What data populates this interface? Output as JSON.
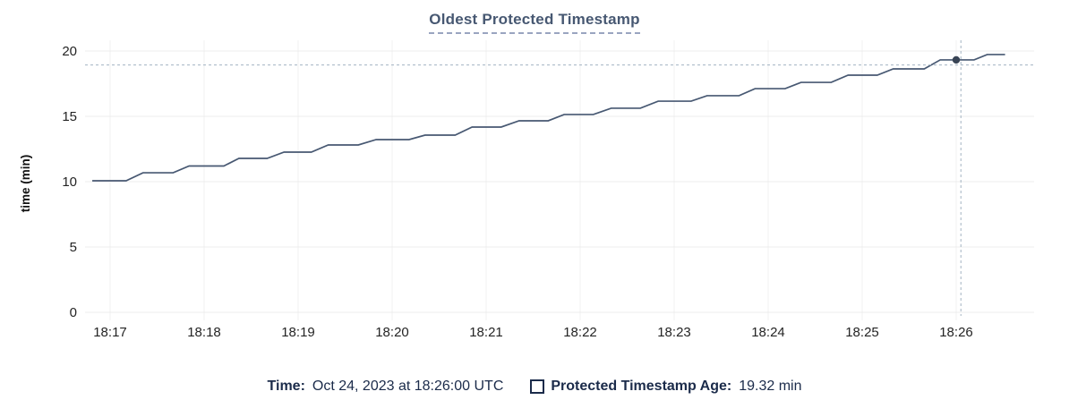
{
  "title": "Oldest Protected Timestamp",
  "tooltip": {
    "time_label": "Time:",
    "time_value": "Oct 24, 2023 at 18:26:00 UTC",
    "series_label": "Protected Timestamp Age:",
    "series_value": "19.32 min",
    "series_swatch": "square-outline-icon"
  },
  "colors": {
    "title": "#475872",
    "title_underline": "#9aa5c0",
    "line": "#475872",
    "hover_dot": "#394455",
    "crosshair": "#a3b3c2",
    "grid_horizontal": "#ececec",
    "grid_vertical": "#f1f1f1",
    "tick_label": "#242424",
    "legend_text": "#1b2b4a"
  },
  "chart_data": {
    "type": "line",
    "title": "Oldest Protected Timestamp",
    "xlabel": "",
    "ylabel": "time (min)",
    "y_ticks": [
      0,
      5,
      10,
      15,
      20
    ],
    "ylim": [
      0,
      20
    ],
    "x_tick_labels": [
      "18:17",
      "18:18",
      "18:19",
      "18:20",
      "18:21",
      "18:22",
      "18:23",
      "18:24",
      "18:25",
      "18:26"
    ],
    "x_tick_minutes": [
      0,
      1,
      2,
      3,
      4,
      5,
      6,
      7,
      8,
      9
    ],
    "x_minutes_base": "18:17",
    "grid": true,
    "legend_position": "bottom",
    "series": [
      {
        "name": "Protected Timestamp Age",
        "unit": "min",
        "color": "#475872",
        "points": [
          [
            -0.19,
            10.07
          ],
          [
            0.17,
            10.07
          ],
          [
            0.35,
            10.68
          ],
          [
            0.67,
            10.68
          ],
          [
            0.84,
            11.2
          ],
          [
            1.21,
            11.2
          ],
          [
            1.37,
            11.78
          ],
          [
            1.67,
            11.78
          ],
          [
            1.85,
            12.26
          ],
          [
            2.14,
            12.26
          ],
          [
            2.32,
            12.81
          ],
          [
            2.64,
            12.81
          ],
          [
            2.83,
            13.22
          ],
          [
            3.18,
            13.22
          ],
          [
            3.35,
            13.56
          ],
          [
            3.67,
            13.56
          ],
          [
            3.85,
            14.18
          ],
          [
            4.16,
            14.18
          ],
          [
            4.35,
            14.66
          ],
          [
            4.66,
            14.66
          ],
          [
            4.83,
            15.14
          ],
          [
            5.14,
            15.14
          ],
          [
            5.33,
            15.62
          ],
          [
            5.64,
            15.62
          ],
          [
            5.83,
            16.16
          ],
          [
            6.18,
            16.16
          ],
          [
            6.35,
            16.58
          ],
          [
            6.69,
            16.58
          ],
          [
            6.86,
            17.12
          ],
          [
            7.18,
            17.12
          ],
          [
            7.35,
            17.6
          ],
          [
            7.67,
            17.6
          ],
          [
            7.85,
            18.15
          ],
          [
            8.16,
            18.15
          ],
          [
            8.33,
            18.63
          ],
          [
            8.66,
            18.63
          ],
          [
            8.83,
            19.32
          ],
          [
            9.19,
            19.32
          ],
          [
            9.33,
            19.73
          ],
          [
            9.52,
            19.73
          ]
        ]
      }
    ],
    "hover": {
      "point": {
        "t_min": 9.0,
        "value": 19.32,
        "time_label": "18:26:00"
      },
      "crosshair": {
        "t_min": 9.05,
        "value": 18.93
      }
    }
  }
}
